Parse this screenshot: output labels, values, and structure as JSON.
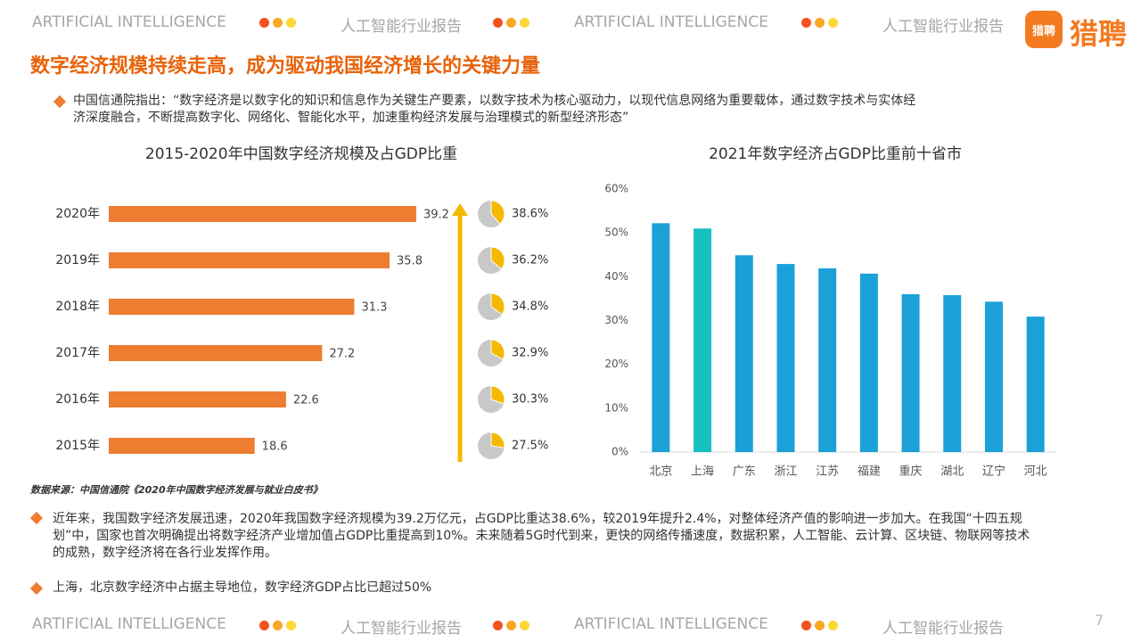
{
  "header": {
    "items": [
      "ARTIFICIAL INTELLIGENCE",
      "人工智能行业报告",
      "ARTIFICIAL INTELLIGENCE",
      "人工智能行业报告"
    ]
  },
  "logo": {
    "icon": "猎聘",
    "text": "猎聘"
  },
  "title": "数字经济规模持续走高，成为驱动我国经济增长的关键力量",
  "intro": "中国信通院指出：“数字经济是以数字化的知识和信息作为关键生产要素，以数字技术为核心驱动力，以现代信息网络为重要载体，通过数字技术与实体经济深度融合，不断提高数字化、网络化、智能化水平，加速重构经济发展与治理模式的新型经济形态”",
  "chart_data": [
    {
      "type": "hbar",
      "title": "2015-2020年中国数字经济规模及占GDP比重",
      "categories": [
        "2020年",
        "2019年",
        "2018年",
        "2017年",
        "2016年",
        "2015年"
      ],
      "values": [
        39.2,
        35.8,
        31.3,
        27.2,
        22.6,
        18.6
      ],
      "color": "#ed7d31",
      "xlim": [
        0,
        45
      ],
      "gdp_share": {
        "values": [
          38.6,
          36.2,
          34.8,
          32.9,
          30.3,
          27.5
        ],
        "value_labels": [
          "38.6%",
          "36.2%",
          "34.8%",
          "32.9%",
          "30.3%",
          "27.5%"
        ],
        "colors": [
          "#f5b800",
          "#c8c8c8"
        ]
      }
    },
    {
      "type": "bar",
      "title": "2021年数字经济占GDP比重前十省市",
      "categories": [
        "北京",
        "上海",
        "广东",
        "浙江",
        "江苏",
        "福建",
        "重庆",
        "湖北",
        "辽宁",
        "河北"
      ],
      "values": [
        52.2,
        51.0,
        44.9,
        42.9,
        41.9,
        40.7,
        36.0,
        35.8,
        34.3,
        30.9
      ],
      "colors": [
        "#1ba1d8",
        "#17bfc0",
        "#1ba1d8",
        "#1ba1d8",
        "#1ba1d8",
        "#1ba1d8",
        "#1ba1d8",
        "#1ba1d8",
        "#1ba1d8",
        "#1ba1d8"
      ],
      "ylim": [
        0,
        60
      ],
      "yticks": [
        {
          "value": 0,
          "label": "0%"
        },
        {
          "value": 10,
          "label": "10%"
        },
        {
          "value": 20,
          "label": "20%"
        },
        {
          "value": 30,
          "label": "30%"
        },
        {
          "value": 40,
          "label": "40%"
        },
        {
          "value": 50,
          "label": "50%"
        },
        {
          "value": 60,
          "label": "60%"
        }
      ],
      "grid": false
    }
  ],
  "source": "数据来源：中国信通院《2020年中国数字经济发展与就业白皮书》",
  "bullets": [
    "近年来，我国数字经济发展迅速，2020年我国数字经济规模为39.2万亿元，占GDP比重达38.6%，较2019年提升2.4%，对整体经济产值的影响进一步加大。在我国“十四五规划”中，国家也首次明确提出将数字经济产业增加值占GDP比重提高到10%。未来随着5G时代到来，更快的网络传播速度，数据积累，人工智能、云计算、区块链、物联网等技术的成熟，数字经济将在各行业发挥作用。",
    "上海，北京数字经济中占据主导地位，数字经济GDP占比已超过50%"
  ],
  "footer": {
    "items": [
      "ARTIFICIAL INTELLIGENCE",
      "人工智能行业报告",
      "ARTIFICIAL INTELLIGENCE",
      "人工智能行业报告"
    ]
  },
  "page_number": 7
}
